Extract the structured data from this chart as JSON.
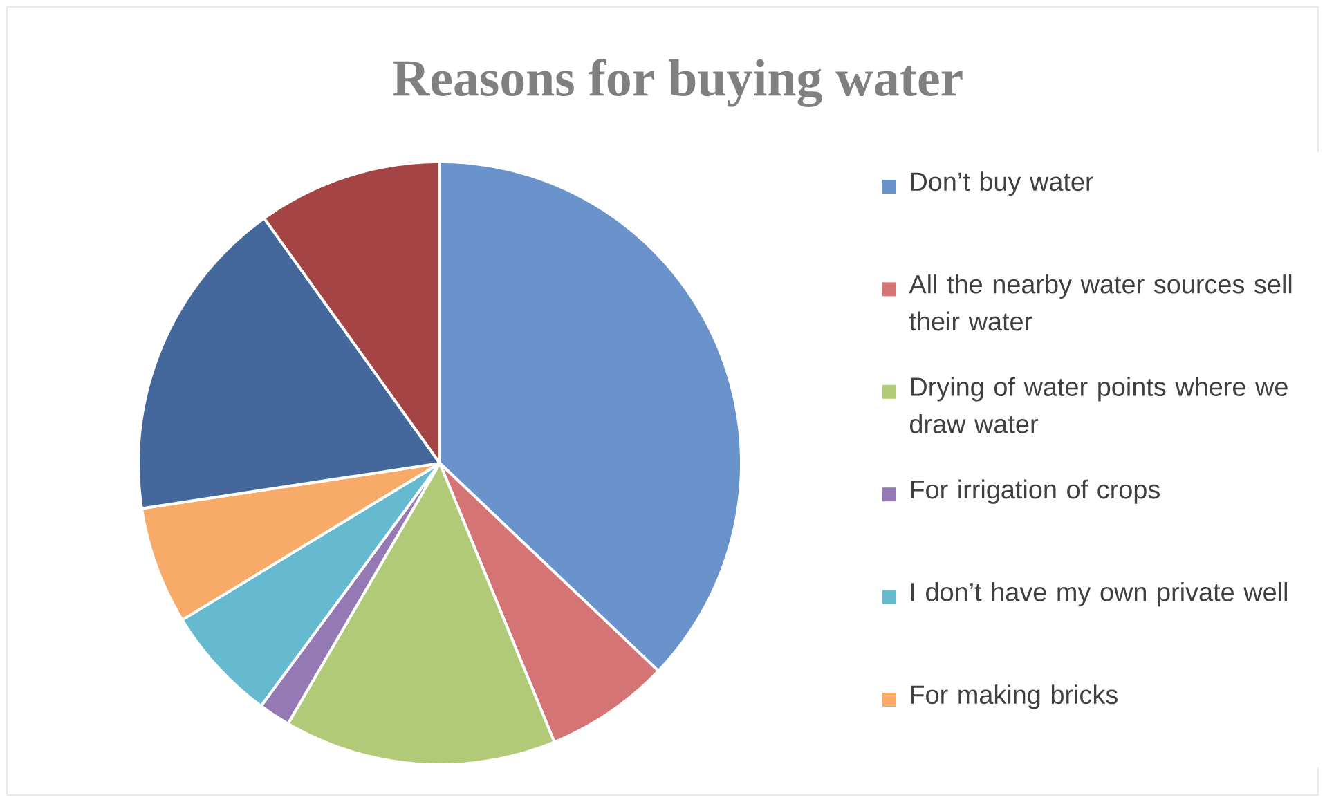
{
  "chart_data": {
    "type": "pie",
    "title": "Reasons for buying water",
    "categories": [
      "Don’t buy water",
      "All the nearby water sources sell their water",
      "Drying of water points where we draw water",
      "For irrigation of crops",
      "I don’t have my own private well",
      "For making bricks",
      null,
      null
    ],
    "values": [
      37.1,
      6.7,
      14.6,
      1.7,
      6.2,
      6.3,
      17.5,
      9.9
    ],
    "colors": [
      "#6a93cb",
      "#d47474",
      "#b0ca78",
      "#9479b4",
      "#66bad0",
      "#f8aa68",
      "#44689b",
      "#a44444"
    ],
    "legend": "right"
  }
}
